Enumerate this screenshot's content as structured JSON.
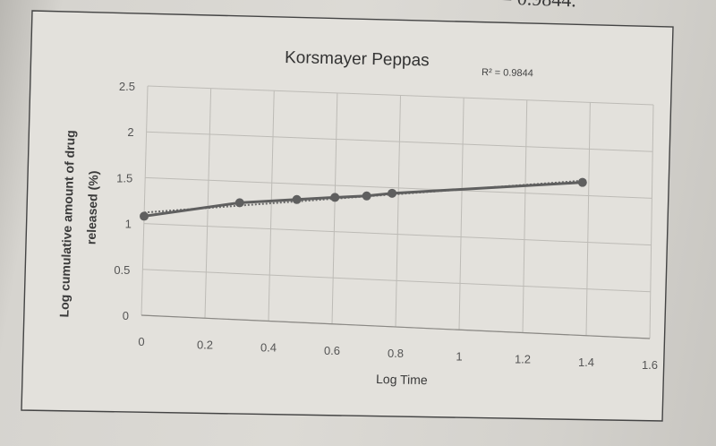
{
  "page": {
    "top_fragment": "= 0.9844."
  },
  "chart_data": {
    "type": "line",
    "title": "Korsmayer Peppas",
    "annotation": "R² = 0.9844",
    "xlabel": "Log Time",
    "ylabel_line1": "Log cumulative amount of drug",
    "ylabel_line2": "released (%)",
    "xlim": [
      0,
      1.6
    ],
    "ylim": [
      0,
      2.5
    ],
    "x_ticks": [
      "0",
      "0.2",
      "0.4",
      "0.6",
      "0.8",
      "1",
      "1.2",
      "1.4",
      "1.6"
    ],
    "y_ticks": [
      "0",
      "0.5",
      "1",
      "1.5",
      "2",
      "2.5"
    ],
    "grid": true,
    "trendline": "dotted linear fit",
    "series": [
      {
        "x": [
          0,
          0.3,
          0.48,
          0.6,
          0.7,
          0.78,
          1.38
        ],
        "y": [
          1.08,
          1.27,
          1.33,
          1.37,
          1.4,
          1.44,
          1.64
        ],
        "color": "#5f5f5f"
      }
    ],
    "trend_fit": {
      "slope": 0.39,
      "intercept": 1.12
    },
    "colors": {
      "line": "#5f5f5f",
      "grid": "#bdbbb6",
      "frame": "#444444"
    }
  }
}
